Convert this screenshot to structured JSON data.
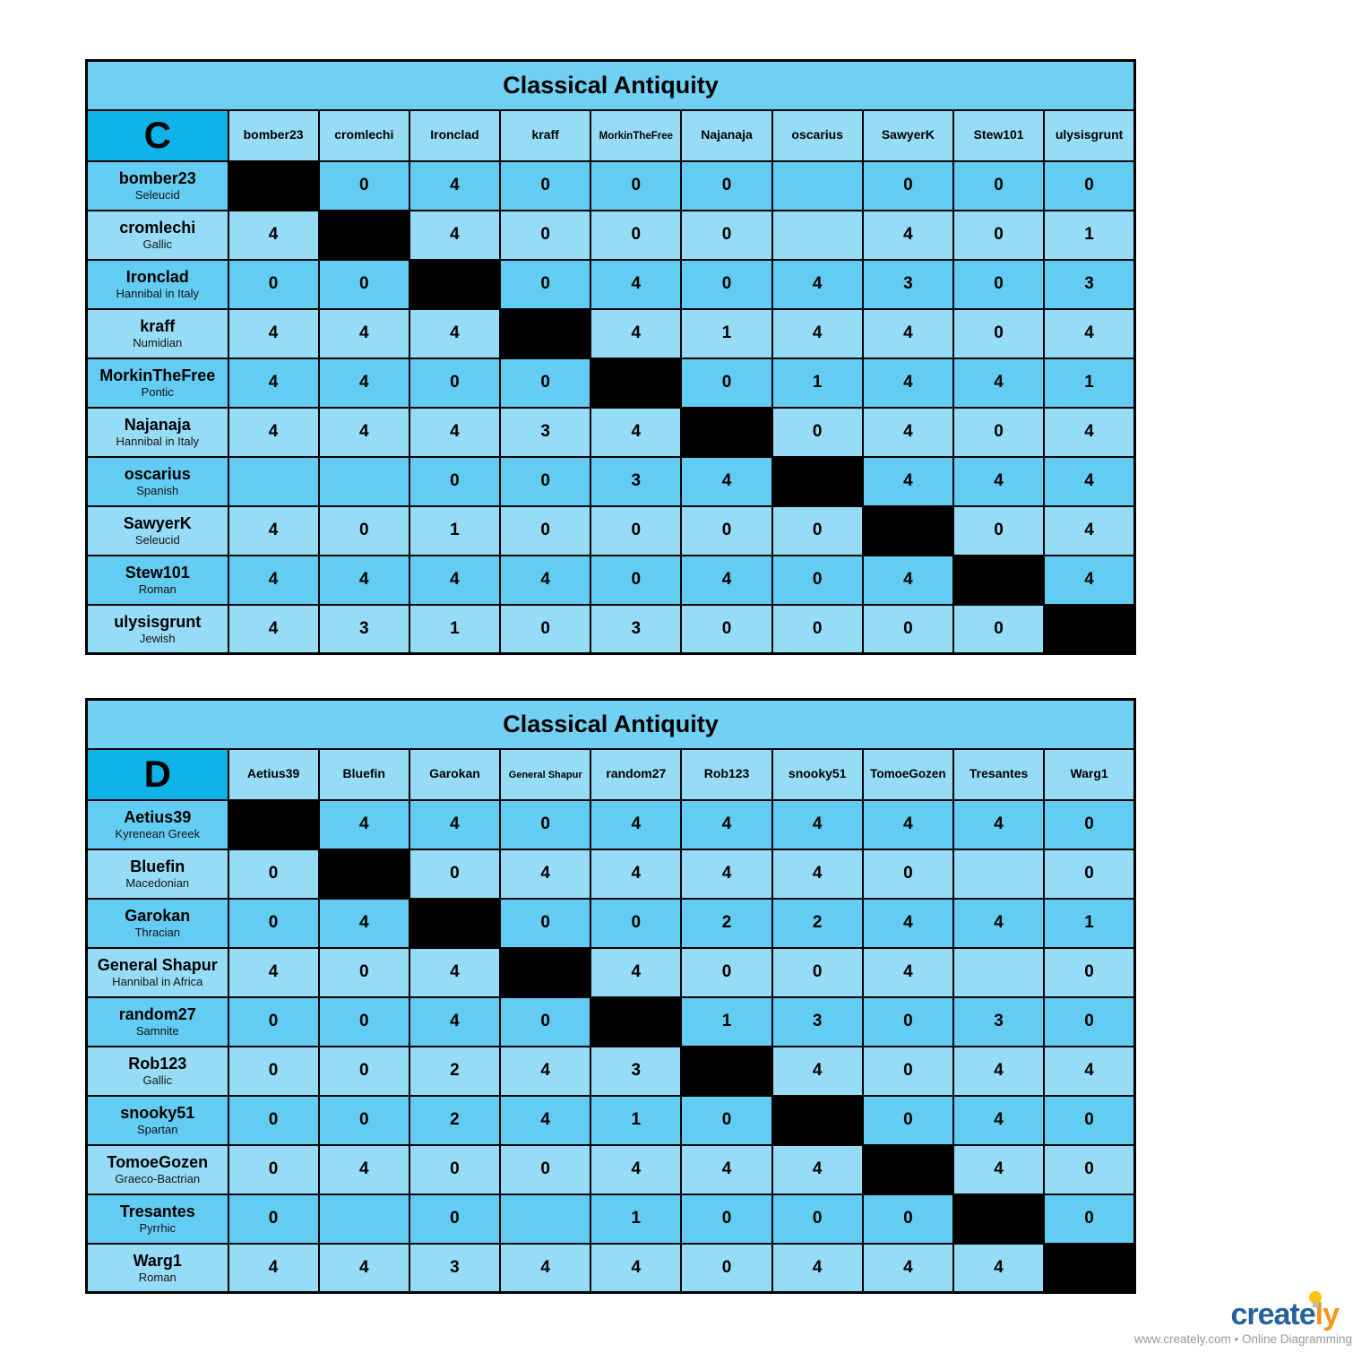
{
  "colors": {
    "page_bg": "#ffffff",
    "title_bg": "#72d0f3",
    "corner_bg": "#10b3e8",
    "header_bg": "#97dcf7",
    "row_dark_bg": "#63ccf2",
    "row_light_bg": "#97dcf7",
    "diagonal_bg": "#000000",
    "grid_line": "#000000",
    "brand_blue": "#24619e",
    "brand_orange": "#f7941e",
    "bulb_yellow": "#f9c513",
    "tagline_gray": "#999999"
  },
  "tables": [
    {
      "title": "Classical Antiquity",
      "group": "C",
      "columns": [
        "bomber23",
        "cromlechi",
        "Ironclad",
        "kraff",
        "MorkinTheFree",
        "Najanaja",
        "oscarius",
        "SawyerK",
        "Stew101",
        "ulysisgrunt"
      ],
      "rows": [
        {
          "name": "bomber23",
          "faction": "Seleucid",
          "cells": [
            null,
            0,
            4,
            0,
            0,
            0,
            "",
            0,
            0,
            0
          ]
        },
        {
          "name": "cromlechi",
          "faction": "Gallic",
          "cells": [
            4,
            null,
            4,
            0,
            0,
            0,
            "",
            4,
            0,
            1
          ]
        },
        {
          "name": "Ironclad",
          "faction": "Hannibal in Italy",
          "cells": [
            0,
            0,
            null,
            0,
            4,
            0,
            4,
            3,
            0,
            3
          ]
        },
        {
          "name": "kraff",
          "faction": "Numidian",
          "cells": [
            4,
            4,
            4,
            null,
            4,
            1,
            4,
            4,
            0,
            4
          ]
        },
        {
          "name": "MorkinTheFree",
          "faction": "Pontic",
          "cells": [
            4,
            4,
            0,
            0,
            null,
            0,
            1,
            4,
            4,
            1
          ]
        },
        {
          "name": "Najanaja",
          "faction": "Hannibal in Italy",
          "cells": [
            4,
            4,
            4,
            3,
            4,
            null,
            0,
            4,
            0,
            4
          ]
        },
        {
          "name": "oscarius",
          "faction": "Spanish",
          "cells": [
            "",
            "",
            0,
            0,
            3,
            4,
            null,
            4,
            4,
            4
          ]
        },
        {
          "name": "SawyerK",
          "faction": "Seleucid",
          "cells": [
            4,
            0,
            1,
            0,
            0,
            0,
            0,
            null,
            0,
            4
          ]
        },
        {
          "name": "Stew101",
          "faction": "Roman",
          "cells": [
            4,
            4,
            4,
            4,
            0,
            4,
            0,
            4,
            null,
            4
          ]
        },
        {
          "name": "ulysisgrunt",
          "faction": "Jewish",
          "cells": [
            4,
            3,
            1,
            0,
            3,
            0,
            0,
            0,
            0,
            null
          ]
        }
      ]
    },
    {
      "title": "Classical Antiquity",
      "group": "D",
      "columns": [
        "Aetius39",
        "Bluefin",
        "Garokan",
        "General Shapur",
        "random27",
        "Rob123",
        "snooky51",
        "TomoeGozen",
        "Tresantes",
        "Warg1"
      ],
      "rows": [
        {
          "name": "Aetius39",
          "faction": "Kyrenean Greek",
          "cells": [
            null,
            4,
            4,
            0,
            4,
            4,
            4,
            4,
            4,
            0
          ]
        },
        {
          "name": "Bluefin",
          "faction": "Macedonian",
          "cells": [
            0,
            null,
            0,
            4,
            4,
            4,
            4,
            0,
            "",
            0
          ]
        },
        {
          "name": "Garokan",
          "faction": "Thracian",
          "cells": [
            0,
            4,
            null,
            0,
            0,
            2,
            2,
            4,
            4,
            1
          ]
        },
        {
          "name": "General Shapur",
          "faction": "Hannibal in Africa",
          "cells": [
            4,
            0,
            4,
            null,
            4,
            0,
            0,
            4,
            "",
            0
          ]
        },
        {
          "name": "random27",
          "faction": "Samnite",
          "cells": [
            0,
            0,
            4,
            0,
            null,
            1,
            3,
            0,
            3,
            0
          ]
        },
        {
          "name": "Rob123",
          "faction": "Gallic",
          "cells": [
            0,
            0,
            2,
            4,
            3,
            null,
            4,
            0,
            4,
            4
          ]
        },
        {
          "name": "snooky51",
          "faction": "Spartan",
          "cells": [
            0,
            0,
            2,
            4,
            1,
            0,
            null,
            0,
            4,
            0
          ]
        },
        {
          "name": "TomoeGozen",
          "faction": "Graeco-Bactrian",
          "cells": [
            0,
            4,
            0,
            0,
            4,
            4,
            4,
            null,
            4,
            0
          ]
        },
        {
          "name": "Tresantes",
          "faction": "Pyrrhic",
          "cells": [
            0,
            "",
            0,
            "",
            1,
            0,
            0,
            0,
            null,
            0
          ]
        },
        {
          "name": "Warg1",
          "faction": "Roman",
          "cells": [
            4,
            4,
            3,
            4,
            4,
            0,
            4,
            4,
            4,
            null
          ]
        }
      ]
    }
  ],
  "footer": {
    "brand_create": "create",
    "brand_ly": "ly",
    "tagline": "www.creately.com • Online Diagramming",
    "bulb_icon": "lightbulb-icon"
  }
}
